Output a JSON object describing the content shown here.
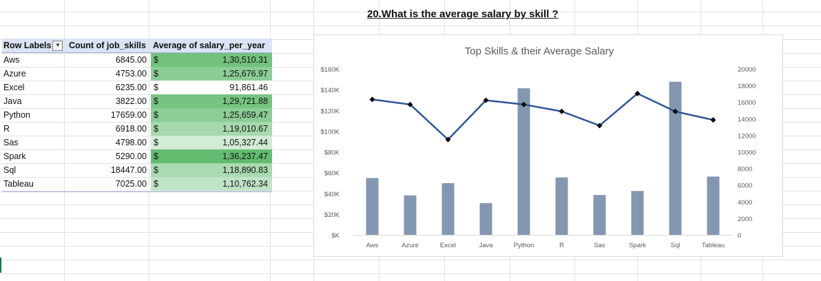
{
  "sheet_title": "20.What is the average salary by skill ?",
  "pivot": {
    "headers": {
      "row_labels": "Row Labels",
      "count": "Count of job_skills",
      "avg": "Average of salary_per_year"
    },
    "rows": [
      {
        "label": "Aws",
        "count": "6845.00",
        "currency": "$",
        "avg": "1,30,510.31",
        "fill": "#72c27e"
      },
      {
        "label": "Azure",
        "count": "4753.00",
        "currency": "$",
        "avg": "1,25,676.97",
        "fill": "#8bcd95"
      },
      {
        "label": "Excel",
        "count": "6235.00",
        "currency": "$",
        "avg": "91,861.46",
        "fill": "#ffffff"
      },
      {
        "label": "Java",
        "count": "3822.00",
        "currency": "$",
        "avg": "1,29,721.88",
        "fill": "#77c482"
      },
      {
        "label": "Python",
        "count": "17659.00",
        "currency": "$",
        "avg": "1,25,659.47",
        "fill": "#8bcd95"
      },
      {
        "label": "R",
        "count": "6918.00",
        "currency": "$",
        "avg": "1,19,010.67",
        "fill": "#a6d9ad"
      },
      {
        "label": "Sas",
        "count": "4798.00",
        "currency": "$",
        "avg": "1,05,327.44",
        "fill": "#d2ebd5"
      },
      {
        "label": "Spark",
        "count": "5290.00",
        "currency": "$",
        "avg": "1,36,237.47",
        "fill": "#63bb70"
      },
      {
        "label": "Sql",
        "count": "18447.00",
        "currency": "$",
        "avg": "1,18,890.83",
        "fill": "#a9dab0"
      },
      {
        "label": "Tableau",
        "count": "7025.00",
        "currency": "$",
        "avg": "1,10,762.34",
        "fill": "#c0e3c5"
      }
    ]
  },
  "chart_data": {
    "type": "bar",
    "title": "Top Skills & their Average Salary",
    "categories": [
      "Aws",
      "Azure",
      "Excel",
      "Java",
      "Python",
      "R",
      "Sas",
      "Spark",
      "Sql",
      "Tableau"
    ],
    "series": [
      {
        "kind": "bar",
        "axis": "secondary",
        "color": "#8497b0",
        "values": [
          6845,
          4753,
          6235,
          3822,
          17659,
          6918,
          4798,
          5290,
          18447,
          7025
        ]
      },
      {
        "kind": "line",
        "axis": "primary",
        "color": "#2f5597",
        "values": [
          130510.31,
          125676.97,
          91861.46,
          129721.88,
          125659.47,
          119010.67,
          105327.44,
          136237.47,
          118890.83,
          110762.34
        ]
      }
    ],
    "y_primary": {
      "range": [
        0,
        160000
      ],
      "ticks": [
        "$K",
        "$20K",
        "$40K",
        "$60K",
        "$80K",
        "$100K",
        "$120K",
        "$140K",
        "$160K"
      ]
    },
    "y_secondary": {
      "range": [
        0,
        20000
      ],
      "ticks": [
        "0",
        "2000",
        "4000",
        "6000",
        "8000",
        "10000",
        "12000",
        "14000",
        "16000",
        "18000",
        "20000"
      ]
    },
    "grid": false,
    "legend": "none"
  }
}
